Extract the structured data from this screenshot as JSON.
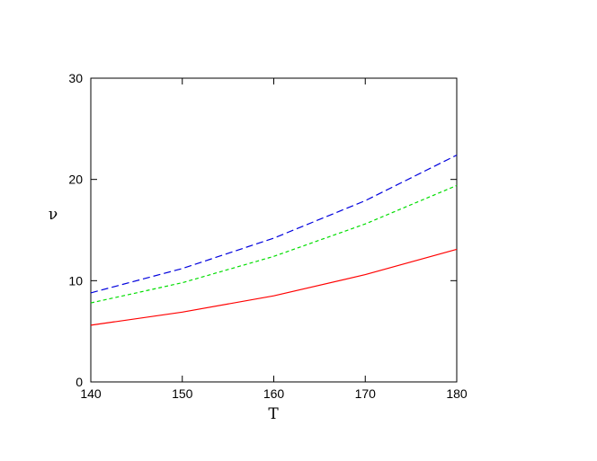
{
  "chart_data": {
    "type": "line",
    "title": "",
    "xlabel": "T",
    "ylabel": "ν",
    "xlim": [
      140,
      180
    ],
    "ylim": [
      0,
      30
    ],
    "xticks": [
      140,
      150,
      160,
      170,
      180
    ],
    "yticks": [
      0,
      10,
      20,
      30
    ],
    "grid": false,
    "legend": "none",
    "x": [
      140,
      150,
      160,
      170,
      180
    ],
    "series": [
      {
        "color": "#ff0000",
        "dash": "solid",
        "values": [
          5.6,
          6.9,
          8.5,
          10.6,
          13.1
        ]
      },
      {
        "color": "#00dd00",
        "dash": "short-dash",
        "values": [
          7.8,
          9.8,
          12.4,
          15.6,
          19.4
        ]
      },
      {
        "color": "#0000dd",
        "dash": "long-dash",
        "values": [
          8.8,
          11.2,
          14.2,
          17.9,
          22.4
        ]
      }
    ]
  }
}
